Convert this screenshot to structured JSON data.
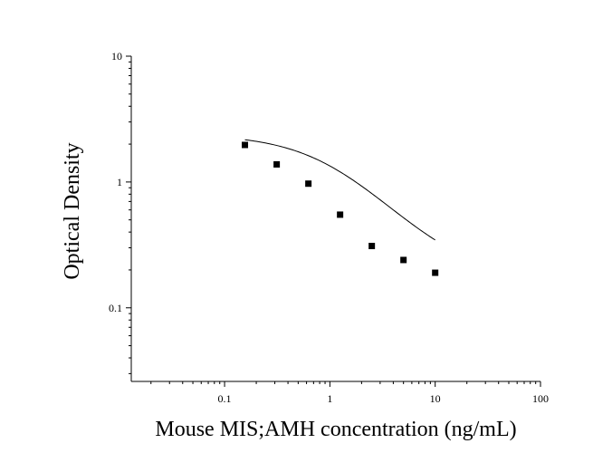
{
  "chart_data": {
    "type": "scatter",
    "title": "",
    "xlabel": "Mouse MIS;AMH concentration (ng/mL)",
    "ylabel": "Optical Density",
    "x_scale": "log",
    "y_scale": "log",
    "xlim": [
      0.013,
      100
    ],
    "ylim": [
      0.026,
      10
    ],
    "x_ticks": [
      {
        "value": 0.1,
        "label": "0.1"
      },
      {
        "value": 1,
        "label": "1"
      },
      {
        "value": 10,
        "label": "10"
      },
      {
        "value": 100,
        "label": "100"
      }
    ],
    "y_ticks": [
      {
        "value": 0.1,
        "label": "0.1"
      },
      {
        "value": 1,
        "label": "1"
      },
      {
        "value": 10,
        "label": "10"
      }
    ],
    "grid": false,
    "legend": "none",
    "series": [
      {
        "points": [
          {
            "x": 0.156,
            "y": 1.97
          },
          {
            "x": 0.3125,
            "y": 1.38
          },
          {
            "x": 0.625,
            "y": 0.97
          },
          {
            "x": 1.25,
            "y": 0.55
          },
          {
            "x": 2.5,
            "y": 0.31
          },
          {
            "x": 5,
            "y": 0.24
          },
          {
            "x": 10,
            "y": 0.19
          }
        ],
        "fit_curve": {
          "model": "4PL",
          "top": 2.4,
          "bottom": 0.165,
          "ec50": 1.1,
          "hill": 1.1,
          "x_range": [
            0.156,
            10
          ]
        },
        "marker": "square",
        "color": "#000000"
      }
    ]
  }
}
